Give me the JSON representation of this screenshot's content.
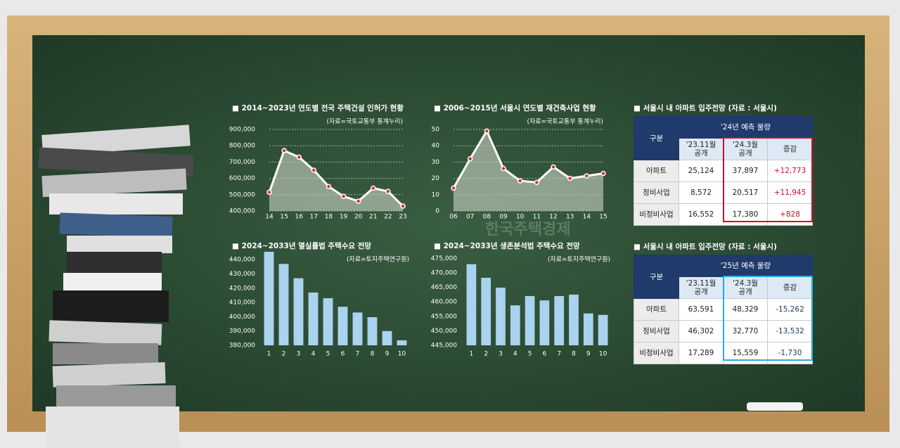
{
  "chart_data": [
    {
      "type": "line",
      "title": "■ 2014~2023년 연도별 전국 주택건설 인허가 현황",
      "source": "(자료=국토교통부 통계누리)",
      "categories": [
        "14",
        "15",
        "16",
        "17",
        "18",
        "19",
        "20",
        "21",
        "22",
        "23"
      ],
      "values": [
        515000,
        770000,
        730000,
        650000,
        550000,
        490000,
        460000,
        540000,
        520000,
        430000
      ],
      "color": "#ffffff",
      "marker_color": "#d9342b",
      "grid": true,
      "ylim": [
        400000,
        900000
      ],
      "yticks": [
        {
          "value": 400000,
          "label": "400,000"
        },
        {
          "value": 500000,
          "label": "500,000"
        },
        {
          "value": 600000,
          "label": "600,000"
        },
        {
          "value": 700000,
          "label": "700,000"
        },
        {
          "value": 800000,
          "label": "800,000"
        },
        {
          "value": 900000,
          "label": "900,000"
        }
      ]
    },
    {
      "type": "line",
      "title": "■ 2006~2015년 서울시 연도별 재건축사업 현황",
      "source": "(자료=국토교통부 통계누리)",
      "categories": [
        "06",
        "07",
        "08",
        "09",
        "10",
        "11",
        "12",
        "13",
        "14",
        "15"
      ],
      "values": [
        14,
        32,
        49,
        26,
        18.5,
        17.5,
        27,
        20,
        21.5,
        23
      ],
      "color": "#ffffff",
      "marker_color": "#d9342b",
      "grid": true,
      "ylim": [
        0,
        50
      ],
      "yticks": [
        0,
        10,
        20,
        30,
        40,
        50
      ]
    },
    {
      "type": "bar",
      "title": "■ 2024~2033년 멸실률법 주택수요 전망",
      "source": "(자료=토지주택연구원)",
      "categories": [
        "1",
        "2",
        "3",
        "4",
        "5",
        "6",
        "7",
        "8",
        "9",
        "10"
      ],
      "values": [
        445500,
        437000,
        427000,
        417000,
        413000,
        407000,
        403000,
        399700,
        390000,
        383500
      ],
      "color": "#a9d3ee",
      "grid": false,
      "ylim": [
        380000,
        447000
      ],
      "yticks": [
        {
          "value": 380000,
          "label": "380,000"
        },
        {
          "value": 390000,
          "label": "390,000"
        },
        {
          "value": 400000,
          "label": "400,000"
        },
        {
          "value": 410000,
          "label": "410,000"
        },
        {
          "value": 420000,
          "label": "420,000"
        },
        {
          "value": 430000,
          "label": "430,000"
        },
        {
          "value": 440000,
          "label": "440,000"
        }
      ]
    },
    {
      "type": "bar",
      "title": "■ 2024~2033년 생존분석법 주택수요 전망",
      "source": "(자료=토지주택연구원)",
      "categories": [
        "1",
        "2",
        "3",
        "4",
        "5",
        "6",
        "7",
        "8",
        "9",
        "10"
      ],
      "values": [
        473000,
        468300,
        464900,
        458800,
        462000,
        460500,
        462000,
        462500,
        456000,
        455500
      ],
      "color": "#a9d3ee",
      "grid": false,
      "ylim": [
        445000,
        478000
      ],
      "yticks": [
        {
          "value": 445000,
          "label": "445,000"
        },
        {
          "value": 450000,
          "label": "450,000"
        },
        {
          "value": 455000,
          "label": "455,000"
        },
        {
          "value": 460000,
          "label": "460,000"
        },
        {
          "value": 465000,
          "label": "465,000"
        },
        {
          "value": 470000,
          "label": "470,000"
        },
        {
          "value": 475000,
          "label": "475,000"
        }
      ]
    }
  ],
  "tables": [
    {
      "title": "■ 서울시 내 아파트 입주전망 (자료 : 서울시)",
      "row_header": "구분",
      "group_header": "'24년 예측 물량",
      "columns": [
        "'23.11월 공개",
        "'24.3월 공개",
        "증감"
      ],
      "highlight_color": "#c8102e",
      "change_color": "#c8102e",
      "rows": [
        [
          "아파트",
          "25,124",
          "37,897",
          "+12,773"
        ],
        [
          "정비사업",
          "8,572",
          "20,517",
          "+11,945"
        ],
        [
          "비정비사업",
          "16,552",
          "17,380",
          "+828"
        ]
      ]
    },
    {
      "title": "■ 서울시 내 아파트 입주전망 (자료 : 서울시)",
      "row_header": "구분",
      "group_header": "'25년 예측 물량",
      "columns": [
        "'23.11월 공개",
        "'24.3월 공개",
        "증감"
      ],
      "highlight_color": "#29abe2",
      "change_color": "#1f3a6b",
      "rows": [
        [
          "아파트",
          "63,591",
          "48,329",
          "-15,262"
        ],
        [
          "정비사업",
          "46,302",
          "32,770",
          "-13,532"
        ],
        [
          "비정비사업",
          "17,289",
          "15,559",
          "-1,730"
        ]
      ]
    }
  ],
  "watermark": "한국주택경제"
}
